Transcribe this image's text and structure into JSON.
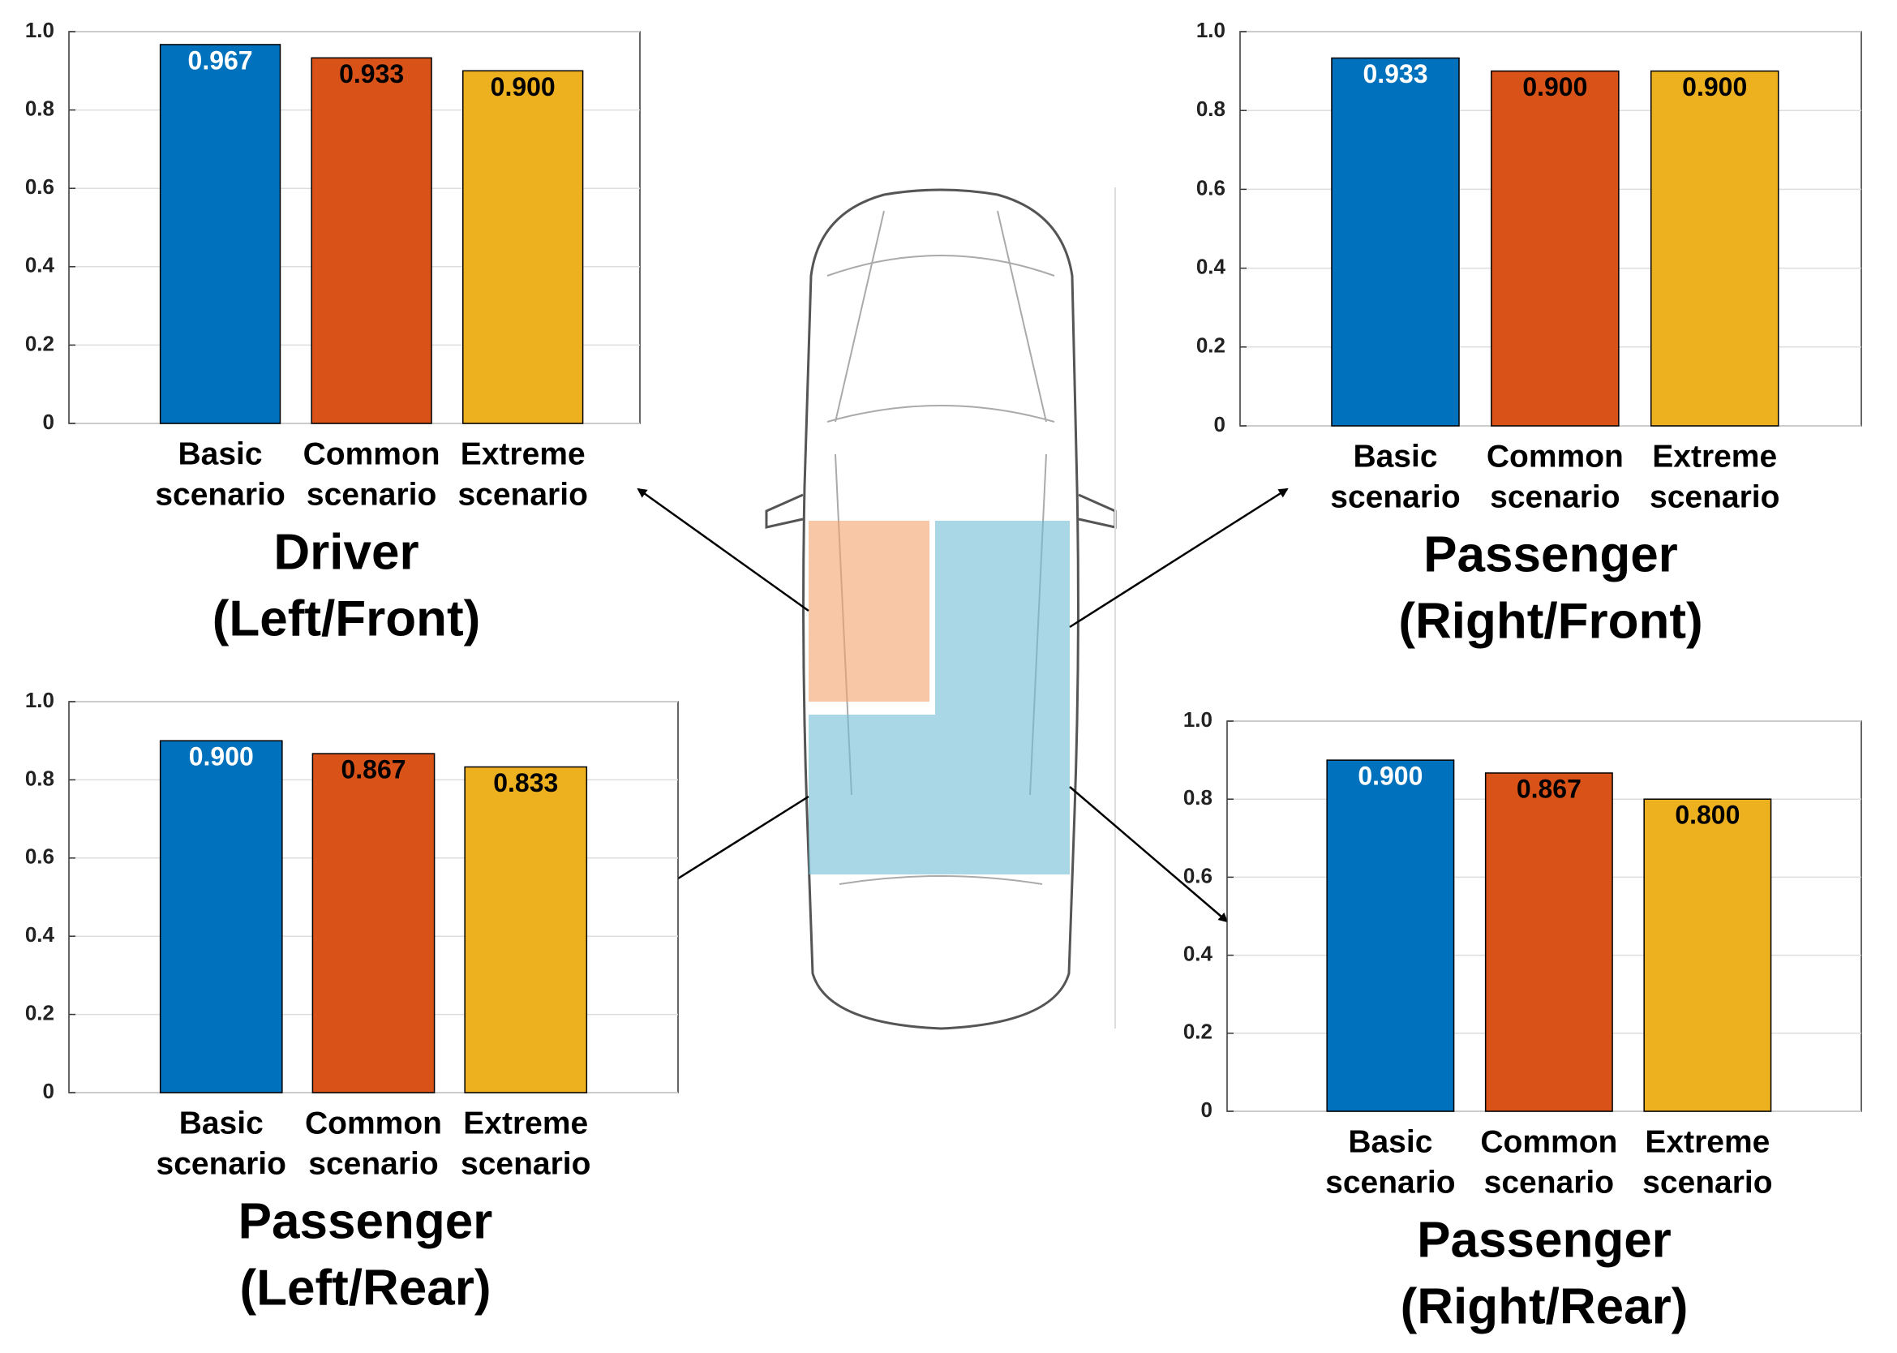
{
  "chart_data": [
    {
      "type": "bar",
      "title": [
        "Driver",
        "(Left/Front)"
      ],
      "categories": [
        [
          "Basic",
          "scenario"
        ],
        [
          "Common",
          "scenario"
        ],
        [
          "Extreme",
          "scenario"
        ]
      ],
      "values": [
        0.967,
        0.933,
        0.9
      ],
      "value_labels": [
        "0.967",
        "0.933",
        "0.900"
      ],
      "colors": [
        "#0072bd",
        "#d95319",
        "#edb120"
      ],
      "value_label_colors": [
        "#ffffff",
        "#000000",
        "#000000"
      ],
      "ylim": [
        0,
        1
      ],
      "yticks": [
        0,
        0.2,
        0.4,
        0.6,
        0.8,
        {
          "value": 1,
          "label": "1.0"
        }
      ],
      "grid": true
    },
    {
      "type": "bar",
      "title": [
        "Passenger",
        "(Right/Front)"
      ],
      "categories": [
        [
          "Basic",
          "scenario"
        ],
        [
          "Common",
          "scenario"
        ],
        [
          "Extreme",
          "scenario"
        ]
      ],
      "values": [
        0.933,
        0.9,
        0.9
      ],
      "value_labels": [
        "0.933",
        "0.900",
        "0.900"
      ],
      "colors": [
        "#0072bd",
        "#d95319",
        "#edb120"
      ],
      "value_label_colors": [
        "#ffffff",
        "#000000",
        "#000000"
      ],
      "ylim": [
        0,
        1
      ],
      "yticks": [
        0,
        0.2,
        0.4,
        0.6,
        0.8,
        {
          "value": 1,
          "label": "1.0"
        }
      ],
      "grid": true
    },
    {
      "type": "bar",
      "title": [
        "Passenger",
        "(Left/Rear)"
      ],
      "categories": [
        [
          "Basic",
          "scenario"
        ],
        [
          "Common",
          "scenario"
        ],
        [
          "Extreme",
          "scenario"
        ]
      ],
      "values": [
        0.9,
        0.867,
        0.833
      ],
      "value_labels": [
        "0.900",
        "0.867",
        "0.833"
      ],
      "colors": [
        "#0072bd",
        "#d95319",
        "#edb120"
      ],
      "value_label_colors": [
        "#ffffff",
        "#000000",
        "#000000"
      ],
      "ylim": [
        0,
        1
      ],
      "yticks": [
        0,
        0.2,
        0.4,
        0.6,
        0.8,
        {
          "value": 1,
          "label": "1.0"
        }
      ],
      "grid": true
    },
    {
      "type": "bar",
      "title": [
        "Passenger",
        "(Right/Rear)"
      ],
      "categories": [
        [
          "Basic",
          "scenario"
        ],
        [
          "Common",
          "scenario"
        ],
        [
          "Extreme",
          "scenario"
        ]
      ],
      "values": [
        0.9,
        0.867,
        0.8
      ],
      "value_labels": [
        "0.900",
        "0.867",
        "0.800"
      ],
      "colors": [
        "#0072bd",
        "#d95319",
        "#edb120"
      ],
      "value_label_colors": [
        "#ffffff",
        "#000000",
        "#000000"
      ],
      "ylim": [
        0,
        1
      ],
      "yticks": [
        0,
        0.2,
        0.4,
        0.6,
        0.8,
        {
          "value": 1,
          "label": "1.0"
        }
      ],
      "grid": true
    }
  ]
}
